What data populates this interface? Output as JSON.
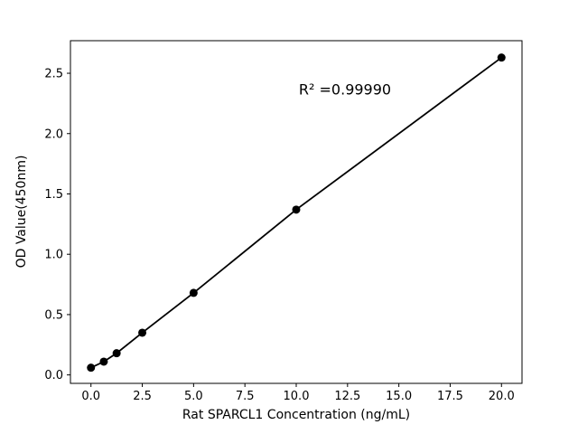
{
  "chart_data": {
    "type": "scatter",
    "title": "",
    "xlabel": "Rat SPARCL1 Concentration (ng/mL)",
    "ylabel": "OD Value(450nm)",
    "annotation": "R² =0.99990",
    "x": [
      0,
      0.625,
      1.25,
      2.5,
      5,
      10,
      20
    ],
    "y": [
      0.06,
      0.11,
      0.18,
      0.35,
      0.68,
      1.37,
      2.63
    ],
    "xlim": [
      -1,
      21
    ],
    "ylim": [
      -0.07,
      2.77
    ],
    "xticks": [
      0,
      2.5,
      5,
      7.5,
      10,
      12.5,
      15,
      17.5,
      20
    ],
    "xtick_labels": [
      "0.0",
      "2.5",
      "5.0",
      "7.5",
      "10.0",
      "12.5",
      "15.0",
      "17.5",
      "20.0"
    ],
    "yticks": [
      0,
      0.5,
      1,
      1.5,
      2,
      2.5
    ],
    "ytick_labels": [
      "0.0",
      "0.5",
      "1.0",
      "1.5",
      "2.0",
      "2.5"
    ],
    "grid": false,
    "legend": "none",
    "line_through_points": true,
    "marker_color": "#000000",
    "line_color": "#000000",
    "axes_color": "#000000",
    "background_color": "#ffffff"
  }
}
